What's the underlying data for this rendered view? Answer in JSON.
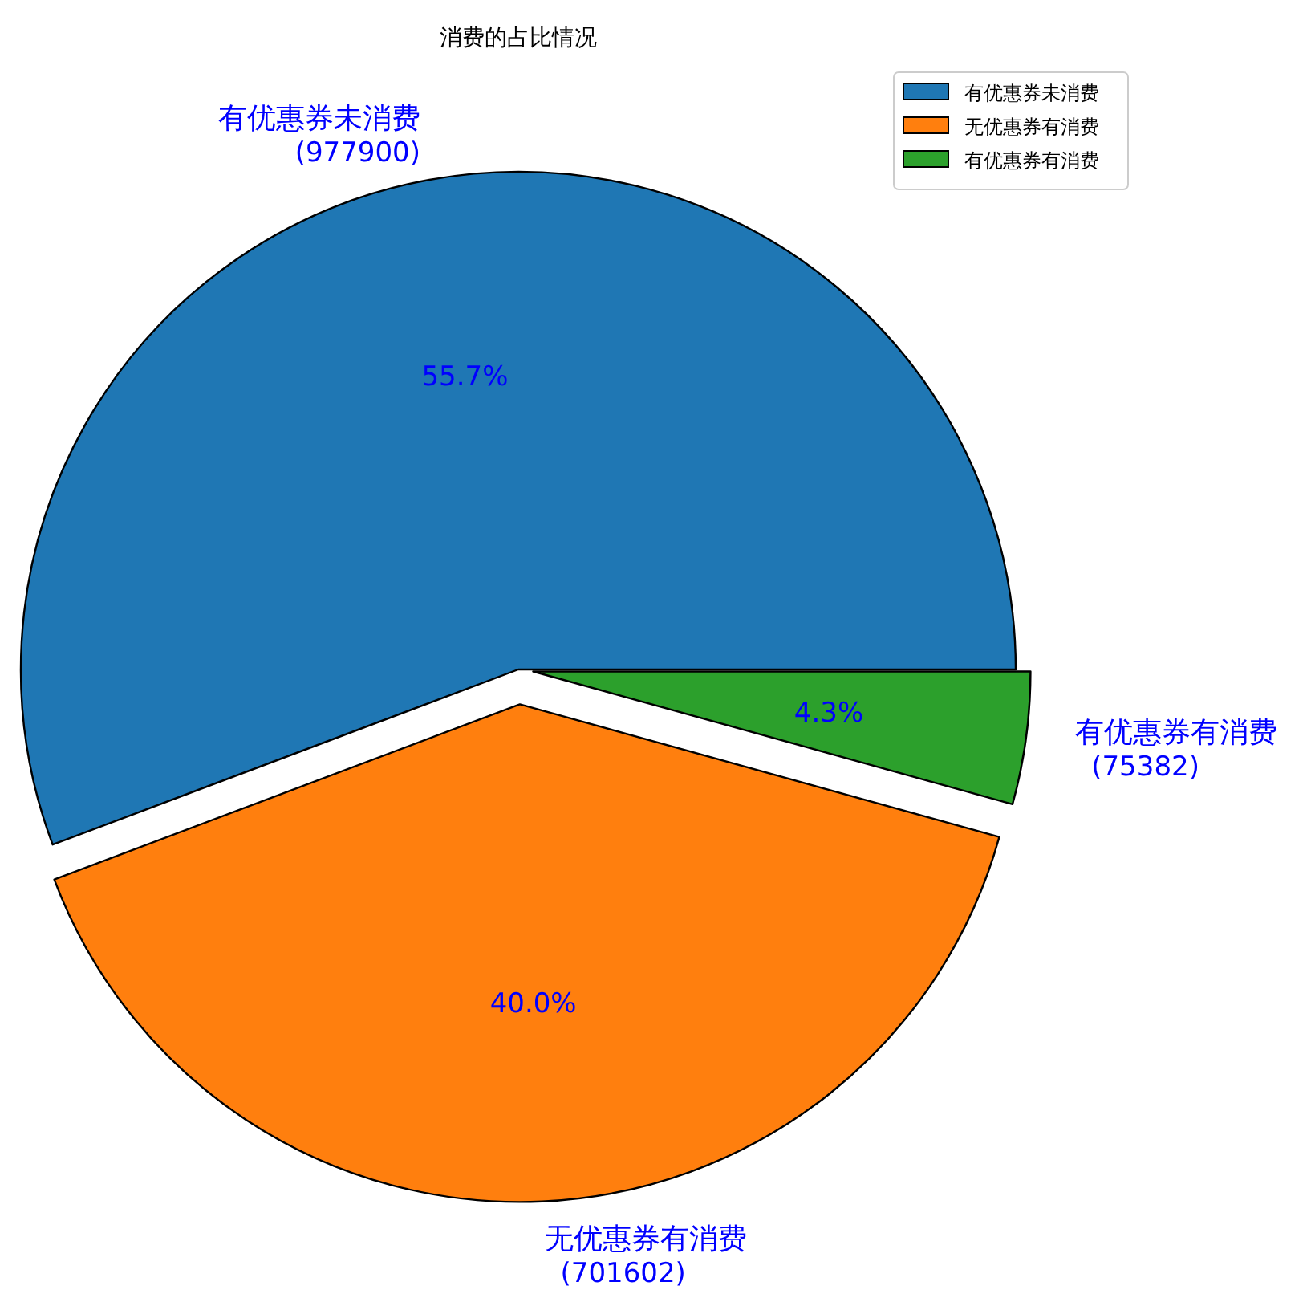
{
  "chart_data": {
    "type": "pie",
    "title": "消费的占比情况",
    "categories": [
      "有优惠券未消费",
      "无优惠券有消费",
      "有优惠券有消费"
    ],
    "values": [
      977900,
      701602,
      75382
    ],
    "colors": [
      "#1f77b4",
      "#ff7f0e",
      "#2ca02c"
    ],
    "value_labels": [
      "(977900)",
      "(701602)",
      "(75382)"
    ],
    "annotations": [
      {
        "text": "55.7%",
        "x": "有优惠券未消费"
      },
      {
        "text": "40.0%",
        "x": "无优惠券有消费"
      },
      {
        "text": "4.3%",
        "x": "有优惠券有消费"
      }
    ],
    "legend": "top right"
  }
}
